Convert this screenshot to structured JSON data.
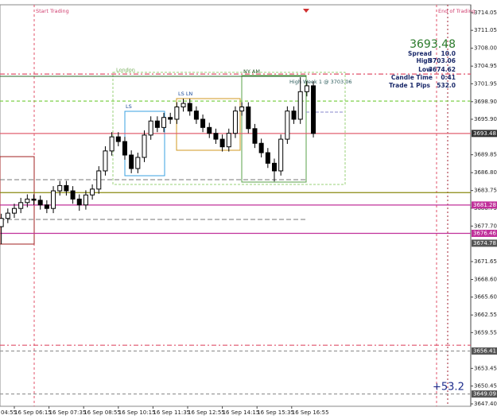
{
  "chart_data": {
    "type": "candlestick",
    "x": [
      "16 Sep 05:45",
      "16 Sep 06:00",
      "16 Sep 06:15",
      "16 Sep 06:30",
      "16 Sep 06:45",
      "16 Sep 07:00",
      "16 Sep 07:15",
      "16 Sep 07:30",
      "16 Sep 07:45",
      "16 Sep 08:00",
      "16 Sep 08:15",
      "16 Sep 08:30",
      "16 Sep 08:45",
      "16 Sep 09:00",
      "16 Sep 09:15",
      "16 Sep 09:30",
      "16 Sep 09:45",
      "16 Sep 10:00",
      "16 Sep 10:15",
      "16 Sep 10:30",
      "16 Sep 10:45",
      "16 Sep 11:00",
      "16 Sep 11:15",
      "16 Sep 11:30",
      "16 Sep 11:45",
      "16 Sep 12:00",
      "16 Sep 12:15",
      "16 Sep 12:30",
      "16 Sep 12:45",
      "16 Sep 13:00",
      "16 Sep 13:15",
      "16 Sep 13:30",
      "16 Sep 13:45",
      "16 Sep 14:00",
      "16 Sep 14:15",
      "16 Sep 14:30",
      "16 Sep 14:45",
      "16 Sep 15:00",
      "16 Sep 15:15",
      "16 Sep 15:30",
      "16 Sep 15:45",
      "16 Sep 16:00",
      "16 Sep 16:15",
      "16 Sep 16:30",
      "16 Sep 16:45",
      "16 Sep 17:00",
      "16 Sep 17:15",
      "16 Sep 17:30",
      "16 Sep 17:45"
    ],
    "series": [
      {
        "color": "#000000",
        "open": [
          3677.6,
          3679.0,
          3679.9,
          3680.7,
          3681.7,
          3682.3,
          3682.1,
          3681.3,
          3680.7,
          3683.7,
          3684.6,
          3683.7,
          3682.3,
          3681.3,
          3683.0,
          3684.0,
          3687.1,
          3690.5,
          3692.9,
          3692.1,
          3689.8,
          3687.5,
          3689.4,
          3693.2,
          3695.6,
          3694.5,
          3696.2,
          3695.9,
          3698.0,
          3698.6,
          3697.3,
          3695.9,
          3694.5,
          3693.5,
          3692.5,
          3691.2,
          3693.5,
          3697.3,
          3698.0,
          3694.3,
          3691.8,
          3690.2,
          3688.4,
          3687.1,
          3692.5,
          3697.3,
          3695.9,
          3700.6,
          3701.6
        ],
        "high": [
          3679.8,
          3680.7,
          3681.5,
          3682.5,
          3683.1,
          3683.1,
          3682.9,
          3682.1,
          3684.5,
          3685.4,
          3685.4,
          3684.5,
          3683.1,
          3683.8,
          3684.8,
          3687.9,
          3691.3,
          3693.7,
          3693.7,
          3692.9,
          3690.6,
          3690.2,
          3694.0,
          3696.4,
          3696.4,
          3697.0,
          3697.0,
          3698.8,
          3699.4,
          3699.4,
          3698.1,
          3696.7,
          3695.3,
          3694.3,
          3693.3,
          3694.3,
          3698.1,
          3698.8,
          3698.8,
          3695.1,
          3692.6,
          3691.0,
          3689.2,
          3693.3,
          3698.1,
          3698.1,
          3703.06,
          3702.4,
          3702.4
        ],
        "low": [
          3674.62,
          3678.2,
          3679.1,
          3679.9,
          3680.9,
          3681.3,
          3680.5,
          3679.9,
          3679.9,
          3682.9,
          3682.9,
          3681.5,
          3680.3,
          3680.5,
          3682.2,
          3683.2,
          3686.3,
          3689.7,
          3691.3,
          3689.0,
          3686.7,
          3686.7,
          3688.6,
          3692.4,
          3693.7,
          3693.7,
          3695.1,
          3695.1,
          3697.2,
          3696.5,
          3695.1,
          3693.7,
          3692.7,
          3691.7,
          3690.4,
          3690.4,
          3692.7,
          3696.5,
          3693.5,
          3691.0,
          3689.4,
          3687.6,
          3685.3,
          3686.3,
          3691.7,
          3695.1,
          3695.1,
          3699.8,
          3692.8
        ],
        "close": [
          3679.0,
          3679.9,
          3680.7,
          3681.7,
          3682.3,
          3682.1,
          3681.3,
          3680.7,
          3683.7,
          3684.6,
          3683.7,
          3682.3,
          3681.3,
          3683.0,
          3684.0,
          3687.1,
          3690.5,
          3692.9,
          3692.1,
          3689.8,
          3687.5,
          3689.4,
          3693.2,
          3695.6,
          3694.5,
          3696.2,
          3695.9,
          3698.0,
          3698.6,
          3697.3,
          3695.9,
          3694.5,
          3693.5,
          3692.5,
          3691.2,
          3693.5,
          3697.3,
          3698.0,
          3694.3,
          3691.8,
          3690.2,
          3688.4,
          3687.1,
          3692.5,
          3697.3,
          3695.9,
          3700.6,
          3701.6,
          3693.48
        ]
      }
    ],
    "xticks": [
      "16 Sep 04:55",
      "16 Sep 06:15",
      "16 Sep 07:35",
      "16 Sep 08:55",
      "16 Sep 10:15",
      "16 Sep 11:35",
      "16 Sep 12:55",
      "16 Sep 14:15",
      "16 Sep 15:35",
      "16 Sep 16:55"
    ],
    "ylim": [
      3647.4,
      3714.05
    ],
    "yticks": [
      3714.05,
      3711.05,
      {
        "value": 3708.0,
        "label": "3708.00"
      },
      3704.95,
      3701.95,
      {
        "value": 3698.9,
        "label": "3698.90"
      },
      {
        "value": 3695.9,
        "label": "3695.90"
      },
      3689.85,
      {
        "value": 3686.8,
        "label": "3686.80"
      },
      3683.75,
      3680.75,
      {
        "value": 3677.7,
        "label": "3677.70"
      },
      3671.65,
      {
        "value": 3668.6,
        "label": "3668.60"
      },
      {
        "value": 3665.6,
        "label": "3665.60"
      },
      3662.55,
      3659.55,
      3653.45,
      3650.45,
      {
        "value": 3647.4,
        "label": "3647.40"
      }
    ],
    "price_labels": [
      {
        "value": 3693.48,
        "color": "#333333"
      },
      {
        "value": 3681.28,
        "color": "#c0309a"
      },
      {
        "value": 3676.46,
        "color": "#c0309a"
      },
      {
        "value": 3674.78,
        "color": "#555555"
      },
      {
        "value": 3656.41,
        "color": "#555555"
      },
      {
        "value": 3649.09,
        "color": "#555555"
      }
    ],
    "levels": [
      {
        "value": 3703.6,
        "color": "#e0506a",
        "dash": "6 3 2 3"
      },
      {
        "value": 3699.0,
        "color": "#7fd04a",
        "dash": "4 3"
      },
      {
        "value": 3693.48,
        "color": "#e06070",
        "dash": ""
      },
      {
        "value": 3683.4,
        "color": "#8a8a10",
        "dash": ""
      },
      {
        "value": 3681.28,
        "color": "#c0309a",
        "dash": ""
      },
      {
        "value": 3676.46,
        "color": "#c0309a",
        "dash": ""
      },
      {
        "value": 3657.4,
        "color": "#e0506a",
        "dash": "6 3 2 3"
      },
      {
        "value": 3656.41,
        "color": "#999999",
        "dash": "4 3"
      },
      {
        "value": 3649.09,
        "color": "#999999",
        "dash": "4 3"
      }
    ],
    "annotations": {
      "start": "Start Trading",
      "end": "End of Trading",
      "london": "London",
      "ny": "NY AM",
      "ls": "LS",
      "lsln": "LS LN",
      "week": "High Week 1 @ 3703.06",
      "pips": "+53.2"
    },
    "info": {
      "price": "3693.48",
      "spread_label": "Spread",
      "spread": "10.0",
      "high_label": "High",
      "high": "3703.06",
      "low_label": "Low",
      "low": "3674.62",
      "candle_label": "Candle Time",
      "candle": "0:41",
      "pips_label": "Trade 1 Pips",
      "pips": "532.0"
    }
  }
}
